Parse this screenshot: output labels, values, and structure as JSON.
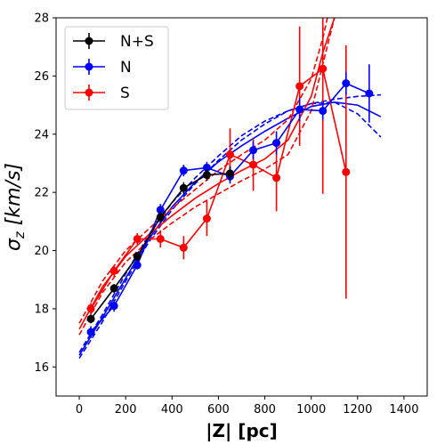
{
  "chart_data": {
    "type": "line",
    "xlabel": "|Z| [pc]",
    "ylabel_symbol": "σ",
    "ylabel_subscript": "z",
    "ylabel_units": " [km/s]",
    "xlim": [
      -100,
      1500
    ],
    "ylim": [
      15,
      28
    ],
    "xticks": [
      0,
      200,
      400,
      600,
      800,
      1000,
      1200,
      1400
    ],
    "yticks": [
      16,
      18,
      20,
      22,
      24,
      26,
      28
    ],
    "legend_position": "top-left",
    "series": [
      {
        "name": "N+S",
        "color": "#000000",
        "x": [
          50,
          150,
          250,
          350,
          450,
          550,
          650
        ],
        "y": [
          17.65,
          18.7,
          19.8,
          21.15,
          22.15,
          22.6,
          22.65
        ],
        "yerr": [
          0.15,
          0.15,
          0.15,
          0.2,
          0.2,
          0.2,
          0.25
        ]
      },
      {
        "name": "N",
        "color": "#0000ff",
        "x": [
          50,
          150,
          250,
          350,
          450,
          550,
          650,
          750,
          850,
          950,
          1050,
          1150,
          1250
        ],
        "y": [
          17.2,
          18.1,
          19.5,
          21.4,
          22.75,
          22.85,
          22.55,
          23.45,
          23.7,
          24.85,
          24.8,
          25.75,
          25.4
        ],
        "yerr": [
          0.2,
          0.2,
          0.15,
          0.2,
          0.2,
          0.2,
          0.25,
          0.3,
          0.4,
          0.4,
          0.3,
          0.4,
          1.0
        ]
      },
      {
        "name": "S",
        "color": "#ff0000",
        "x": [
          50,
          150,
          250,
          350,
          450,
          550,
          650,
          750,
          850,
          950,
          1050,
          1150
        ],
        "y": [
          18.0,
          19.3,
          20.4,
          20.4,
          20.1,
          21.1,
          23.3,
          22.95,
          22.5,
          25.65,
          26.25,
          22.7
        ],
        "yerr": [
          0.2,
          0.2,
          0.2,
          0.3,
          0.4,
          0.6,
          0.9,
          0.9,
          1.15,
          2.05,
          4.3,
          4.35
        ]
      }
    ],
    "model_curves": [
      {
        "color": "#0000ff",
        "style": "solid",
        "x": [
          0,
          100,
          200,
          300,
          400,
          500,
          600,
          700,
          800,
          900,
          1000,
          1100,
          1200,
          1300
        ],
        "y": [
          16.4,
          17.7,
          19.05,
          20.4,
          21.5,
          22.35,
          23.05,
          23.6,
          24.1,
          24.55,
          24.95,
          25.1,
          25.0,
          24.6
        ]
      },
      {
        "color": "#0000ff",
        "style": "dashed",
        "x": [
          0,
          100,
          200,
          300,
          400,
          500,
          600,
          700,
          800,
          900,
          1000,
          1100,
          1200,
          1300
        ],
        "y": [
          16.3,
          17.55,
          18.95,
          20.3,
          21.4,
          22.3,
          23.1,
          23.8,
          24.35,
          24.8,
          25.05,
          25.1,
          24.7,
          23.9
        ]
      },
      {
        "color": "#0000ff",
        "style": "dashed",
        "x": [
          0,
          100,
          200,
          300,
          400,
          500,
          600,
          700,
          800,
          900,
          1000,
          1100,
          1200,
          1300
        ],
        "y": [
          16.5,
          17.8,
          19.2,
          20.55,
          21.65,
          22.5,
          23.25,
          23.95,
          24.45,
          24.8,
          25.05,
          25.2,
          25.3,
          25.35
        ]
      },
      {
        "color": "#ff0000",
        "style": "solid",
        "x": [
          0,
          100,
          200,
          300,
          400,
          500,
          600,
          700,
          800,
          900,
          1000,
          1050,
          1100
        ],
        "y": [
          17.3,
          18.75,
          19.8,
          20.55,
          21.2,
          21.8,
          22.3,
          22.75,
          23.15,
          23.8,
          25.3,
          26.8,
          28.0
        ]
      },
      {
        "color": "#ff0000",
        "style": "dashed",
        "x": [
          0,
          100,
          200,
          300,
          400,
          500,
          600,
          700,
          800,
          900,
          1000,
          1050,
          1100
        ],
        "y": [
          17.1,
          18.55,
          19.6,
          20.35,
          20.95,
          21.5,
          21.95,
          22.4,
          22.8,
          23.3,
          24.8,
          26.4,
          28.0
        ]
      },
      {
        "color": "#ff0000",
        "style": "dashed",
        "x": [
          0,
          100,
          200,
          300,
          400,
          500,
          600,
          700,
          800,
          900,
          1000,
          1050,
          1070
        ],
        "y": [
          17.5,
          18.95,
          20.0,
          20.75,
          21.45,
          22.1,
          22.75,
          23.3,
          23.8,
          24.5,
          25.9,
          27.3,
          28.0
        ]
      }
    ]
  }
}
